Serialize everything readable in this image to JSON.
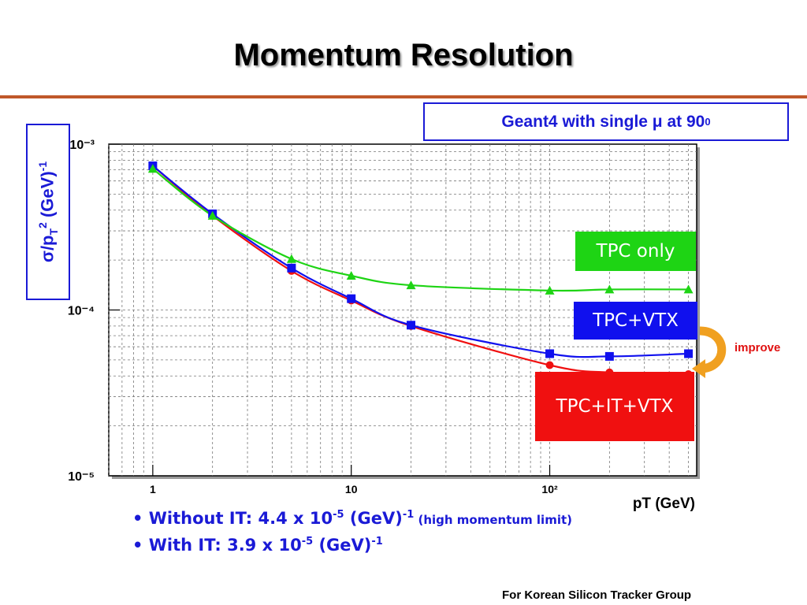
{
  "slide": {
    "title": "Momentum Resolution",
    "subtitle": "Geant4 with single μ at 90",
    "subtitle_sup": "0",
    "improve_label": "improve",
    "footer": "For Korean Silicon Tracker Group"
  },
  "bullets": [
    {
      "text": "Without IT: 4.4 x 10",
      "exp": "-5",
      "unit": " (GeV)",
      "unit_exp": "-1",
      "note": " (high momentum limit)"
    },
    {
      "text": "With IT: 3.9 x 10",
      "exp": "-5",
      "unit": " (GeV)",
      "unit_exp": "-1",
      "note": ""
    }
  ],
  "colors": {
    "accent_rule": "#c0582a",
    "text_blue": "#1a1ad6",
    "tpc_only": "#1ed414",
    "tpc_vtx": "#1010ee",
    "tpc_it_vtx": "#f01010",
    "improve_arrow": "#f0a020"
  },
  "chart_data": {
    "type": "line",
    "xlabel": "pT (GeV)",
    "ylabel": "σ/p",
    "ylabel_sub": "T",
    "ylabel_sup": "2",
    "ylabel_unit": " (GeV)",
    "ylabel_unit_sup": "-1",
    "xscale": "log",
    "yscale": "log",
    "xlim": [
      0.6,
      550
    ],
    "ylim": [
      1e-05,
      0.001
    ],
    "grid": true,
    "x_tick_labels": [
      "1",
      "10",
      "10²"
    ],
    "y_tick_labels": [
      "10⁻³",
      "10⁻⁴",
      "10⁻⁵"
    ],
    "x_ticks": [
      1,
      10,
      100
    ],
    "y_ticks": [
      0.001,
      0.0001,
      1e-05
    ],
    "series": [
      {
        "name": "TPC only",
        "color": "#1ed414",
        "marker": "triangle",
        "x": [
          1,
          2,
          5,
          10,
          20,
          100,
          200,
          500
        ],
        "y": [
          0.00071,
          0.00037,
          0.000203,
          0.000161,
          0.000141,
          0.000131,
          0.000133,
          0.000133
        ]
      },
      {
        "name": "TPC+VTX",
        "color": "#1010ee",
        "marker": "square",
        "x": [
          1,
          2,
          5,
          10,
          20,
          100,
          200,
          500
        ],
        "y": [
          0.00074,
          0.00038,
          0.000179,
          0.000117,
          8.1e-05,
          5.45e-05,
          5.25e-05,
          5.45e-05
        ]
      },
      {
        "name": "TPC+IT+VTX",
        "color": "#f01010",
        "marker": "circle",
        "x": [
          1,
          2,
          5,
          10,
          20,
          100,
          200,
          500
        ],
        "y": [
          0.00074,
          0.00037,
          0.000172,
          0.000114,
          8e-05,
          4.65e-05,
          4.2e-05,
          4.1e-05
        ]
      }
    ]
  }
}
